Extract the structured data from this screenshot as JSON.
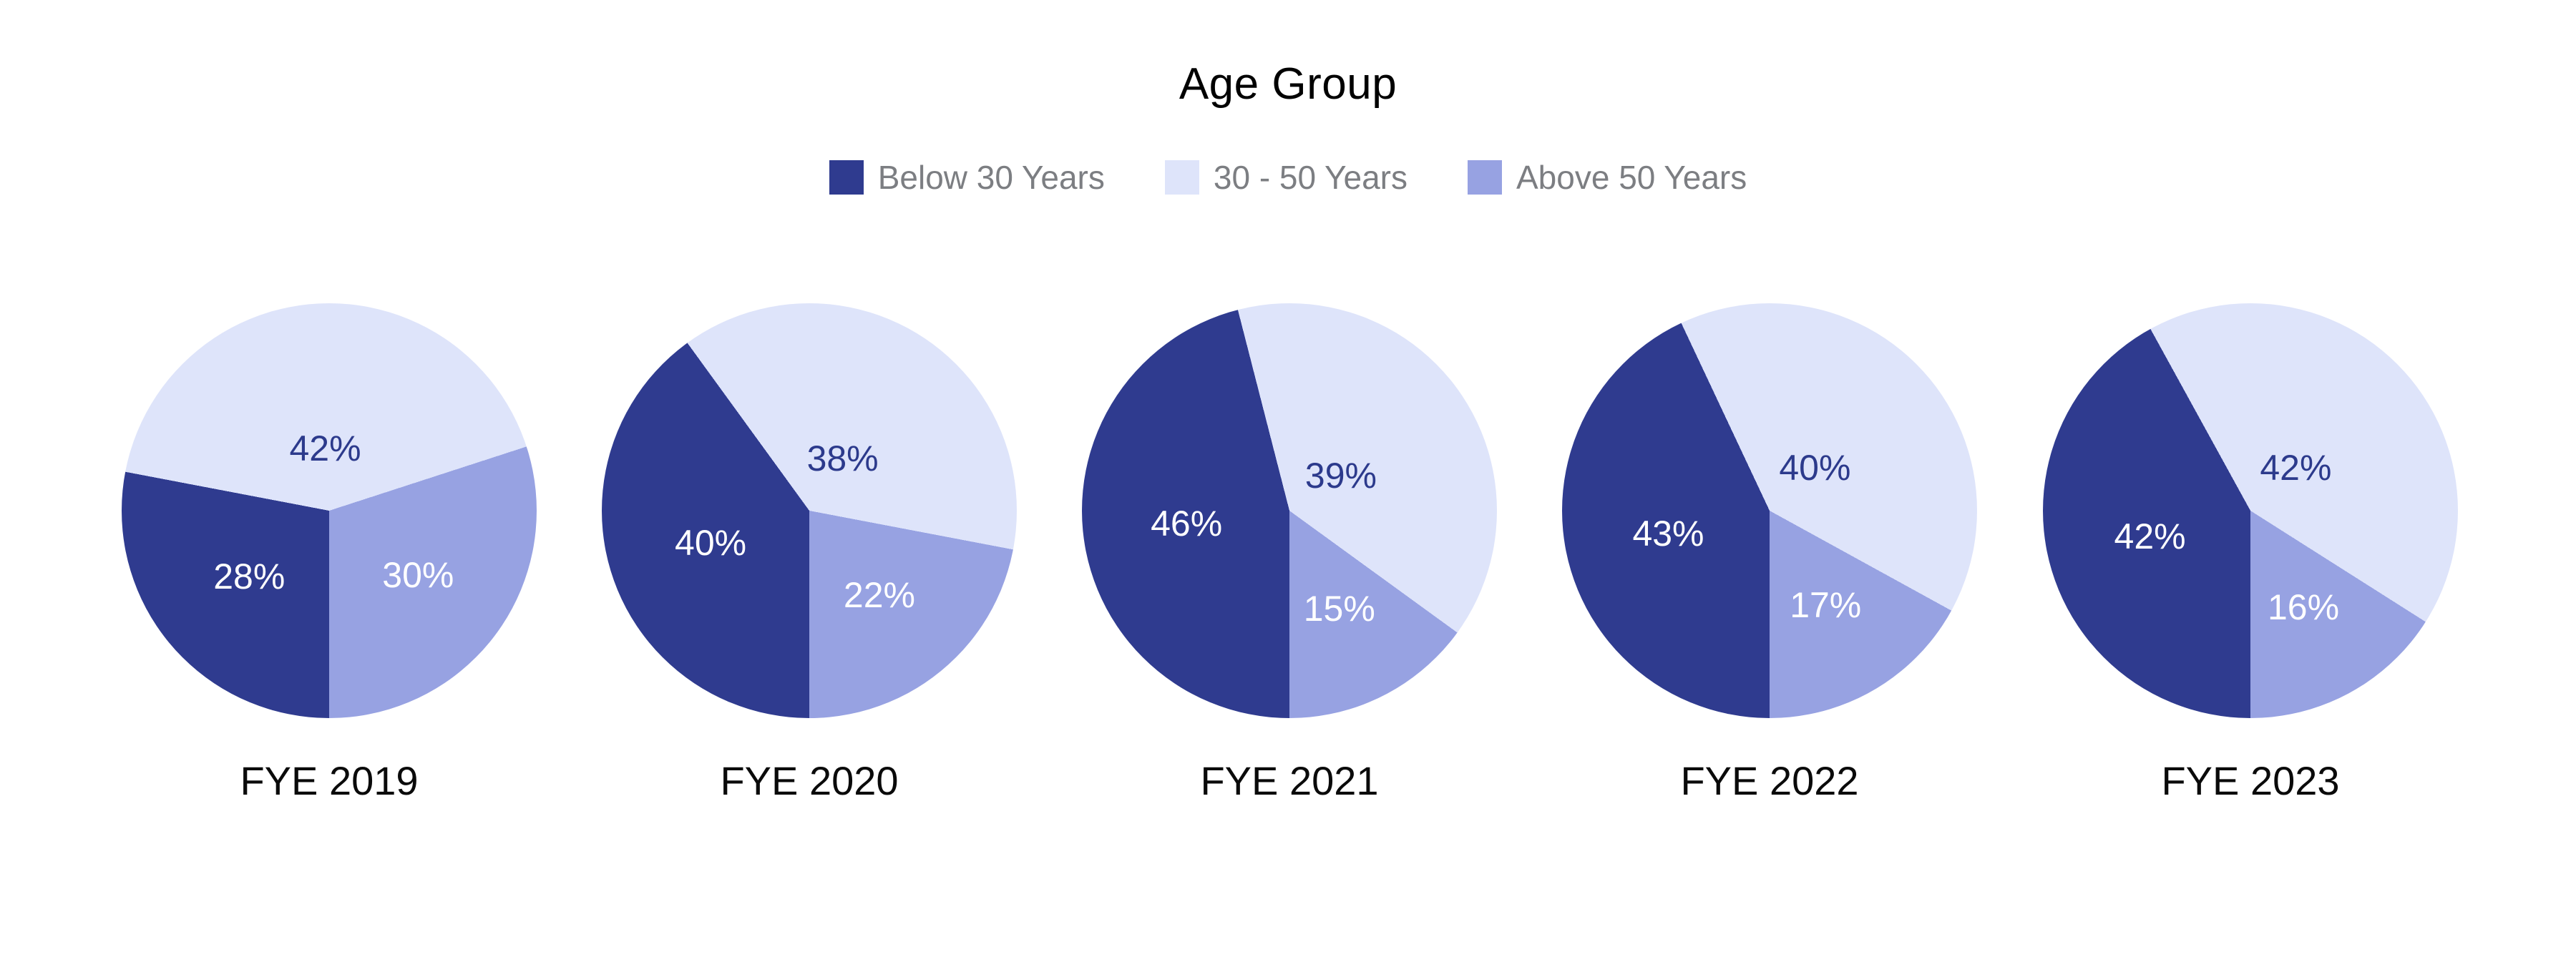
{
  "page": {
    "background": "#ffffff"
  },
  "header": {
    "title": "Age Group"
  },
  "legend": {
    "items": [
      {
        "label": "Below 30 Years",
        "color": "#2F3B8F"
      },
      {
        "label": "30 - 50 Years",
        "color": "#DEE4FA"
      },
      {
        "label": "Above 50 Years",
        "color": "#97A2E2"
      }
    ],
    "text_color": "#7c7e82"
  },
  "chart_data": {
    "type": "pie",
    "title": "Age Group",
    "legend_position": "top",
    "series_names": [
      "Below 30 Years",
      "30 - 50 Years",
      "Above 50 Years"
    ],
    "colors": [
      "#2F3B8F",
      "#DEE4FA",
      "#97A2E2"
    ],
    "label_text_colors": [
      "#ffffff",
      "#2C3A8C",
      "#ffffff"
    ],
    "start_angle_deg": 180,
    "direction": "clockwise",
    "pies": [
      {
        "title": "FYE 2019",
        "values": [
          28,
          42,
          30
        ],
        "labels": [
          "28%",
          "42%",
          "30%"
        ]
      },
      {
        "title": "FYE 2020",
        "values": [
          40,
          38,
          22
        ],
        "labels": [
          "40%",
          "38%",
          "22%"
        ]
      },
      {
        "title": "FYE 2021",
        "values": [
          46,
          39,
          15
        ],
        "labels": [
          "46%",
          "39%",
          "15%"
        ]
      },
      {
        "title": "FYE 2022",
        "values": [
          43,
          40,
          17
        ],
        "labels": [
          "43%",
          "40%",
          "17%"
        ]
      },
      {
        "title": "FYE 2023",
        "values": [
          42,
          42,
          16
        ],
        "labels": [
          "42%",
          "42%",
          "16%"
        ]
      }
    ]
  }
}
